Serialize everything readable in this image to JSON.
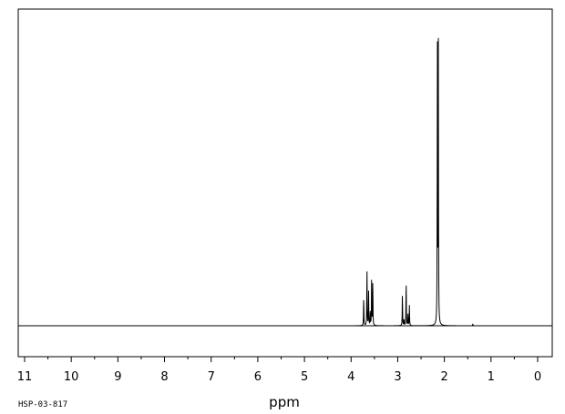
{
  "chart_data": {
    "type": "line",
    "xlabel": "ppm",
    "x_reversed": true,
    "xlim": [
      11,
      0
    ],
    "ylim": [
      0,
      1
    ],
    "grid": false,
    "legend": "none",
    "tick_labels": [
      "11",
      "10",
      "9",
      "8",
      "7",
      "6",
      "5",
      "4",
      "3",
      "2",
      "1",
      "0"
    ],
    "tick_values": [
      11,
      10,
      9,
      8,
      7,
      6,
      5,
      4,
      3,
      2,
      1,
      0
    ],
    "minor_tick_step": 0.5,
    "peaks": [
      {
        "shift": 3.73,
        "intensity": 0.105
      },
      {
        "shift": 3.66,
        "intensity": 0.21
      },
      {
        "shift": 3.625,
        "intensity": 0.12
      },
      {
        "shift": 3.59,
        "intensity": 0.045
      },
      {
        "shift": 3.56,
        "intensity": 0.16
      },
      {
        "shift": 3.535,
        "intensity": 0.16
      },
      {
        "shift": 2.9,
        "intensity": 0.115
      },
      {
        "shift": 2.865,
        "intensity": 0.025
      },
      {
        "shift": 2.82,
        "intensity": 0.16
      },
      {
        "shift": 2.78,
        "intensity": 0.04
      },
      {
        "shift": 2.75,
        "intensity": 0.07
      },
      {
        "shift": 2.15,
        "intensity": 0.98
      },
      {
        "shift": 2.13,
        "intensity": 0.965
      },
      {
        "shift": 1.39,
        "intensity": 0.006
      }
    ],
    "line_color": "#000000"
  },
  "footer": {
    "code": "HSP-03-817"
  }
}
